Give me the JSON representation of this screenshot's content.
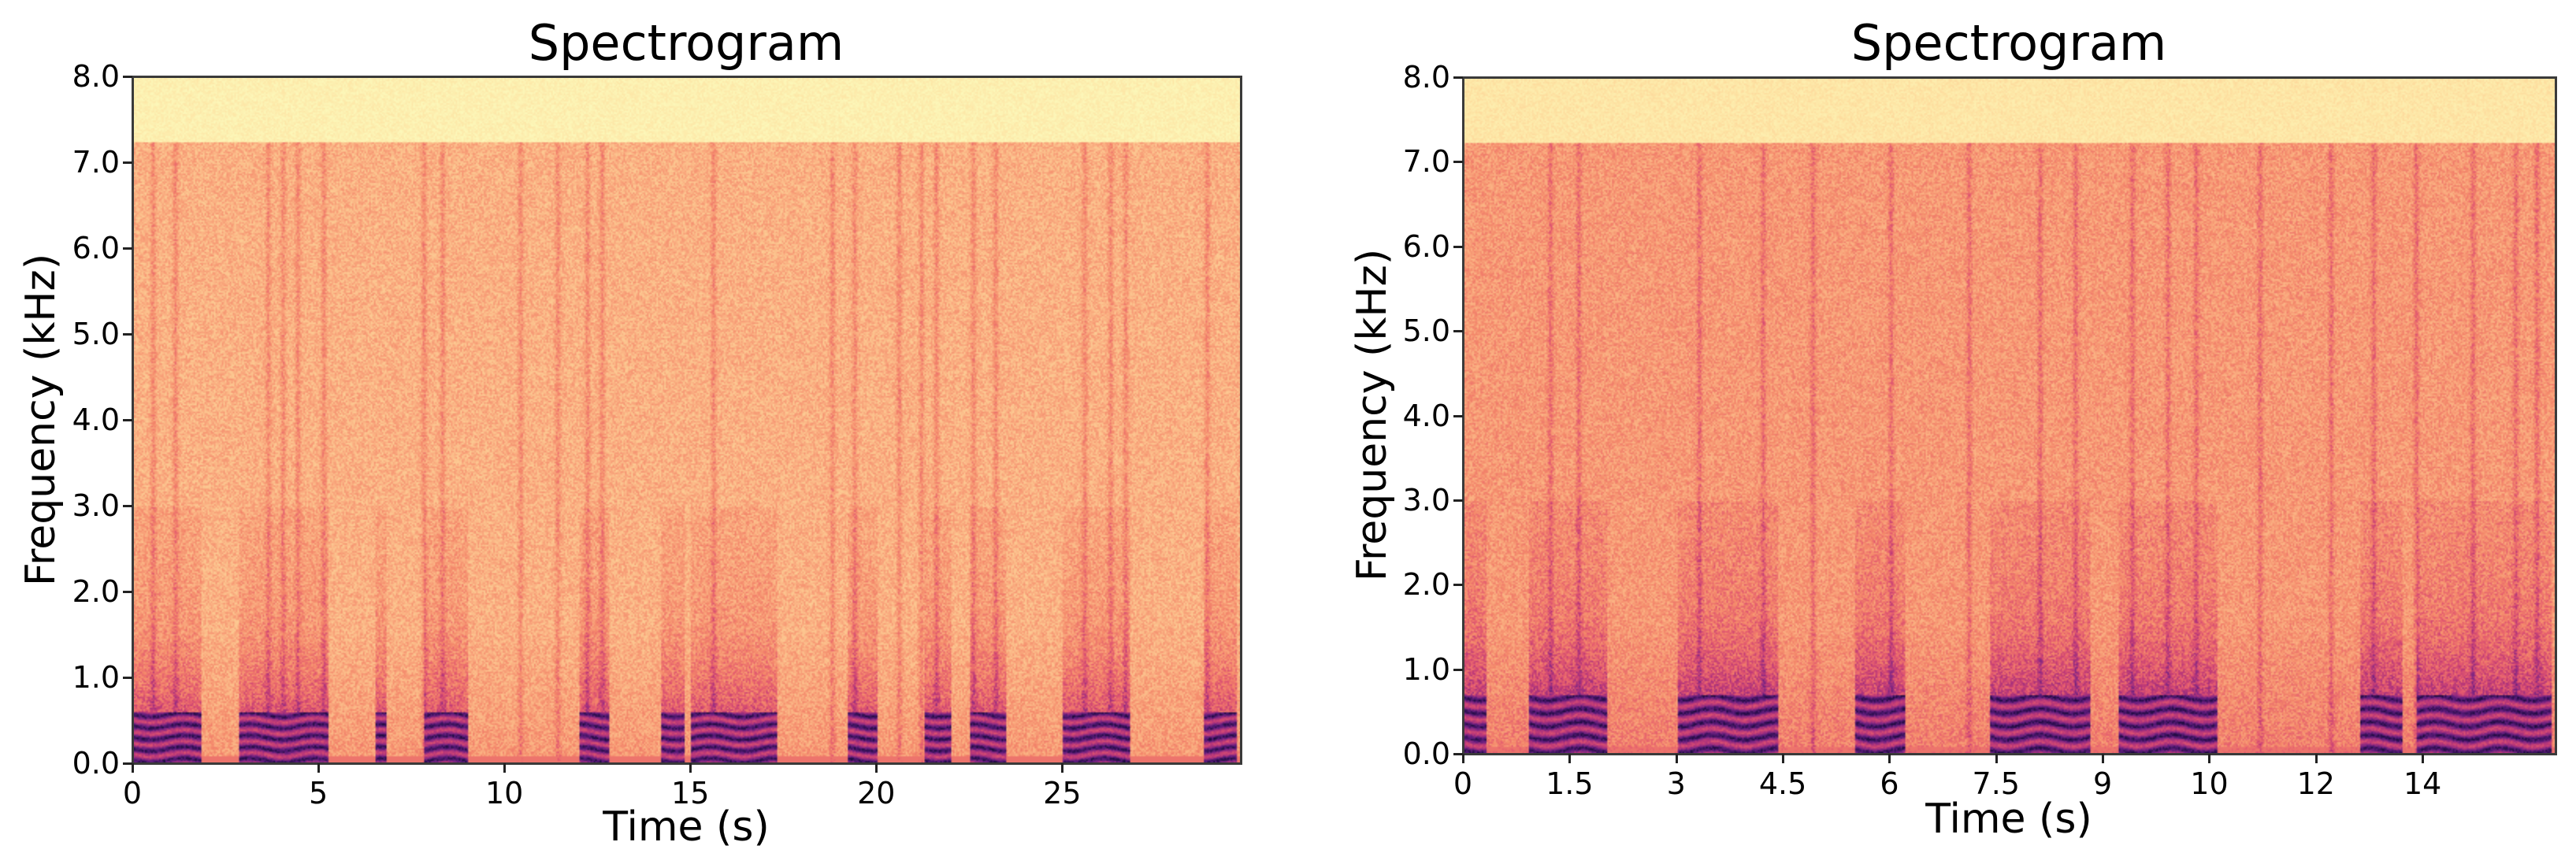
{
  "chart_data": [
    {
      "type": "heatmap",
      "title": "Spectrogram",
      "xlabel": "Time (s)",
      "ylabel": "Frequency (kHz)",
      "xlim": [
        0,
        29.8
      ],
      "ylim": [
        0.0,
        8.0
      ],
      "x_ticks": [
        {
          "value": 0,
          "label": "0"
        },
        {
          "value": 5,
          "label": "5"
        },
        {
          "value": 10,
          "label": "10"
        },
        {
          "value": 15,
          "label": "15"
        },
        {
          "value": 20,
          "label": "20"
        },
        {
          "value": 25,
          "label": "25"
        }
      ],
      "y_ticks": [
        "0.0",
        "1.0",
        "2.0",
        "3.0",
        "4.0",
        "5.0",
        "6.0",
        "7.0",
        "8.0"
      ],
      "grid": false,
      "colormap": "magma_r",
      "colors": {
        "high_band": "#fcf6b8",
        "background": "#f9b889",
        "mid": "#ef7f63",
        "low_energy": "#e0627a",
        "speech": "#6b2a8c",
        "speech_peak": "#2a0b4d"
      },
      "spectral_cutoff_khz": 7.25,
      "speech_band_top_khz": 0.6,
      "speech_segments_s": [
        [
          0.0,
          1.8
        ],
        [
          2.8,
          5.2
        ],
        [
          6.5,
          6.8
        ],
        [
          7.8,
          9.0
        ],
        [
          12.0,
          12.8
        ],
        [
          14.2,
          14.8
        ],
        [
          15.0,
          17.3
        ],
        [
          19.2,
          20.0
        ],
        [
          21.3,
          22.0
        ],
        [
          22.5,
          23.5
        ],
        [
          25.0,
          26.8
        ],
        [
          28.8,
          29.7
        ]
      ],
      "vertical_streaks_s": [
        0.5,
        1.1,
        3.6,
        4.0,
        4.4,
        5.1,
        7.8,
        8.3,
        10.4,
        11.4,
        12.2,
        12.6,
        15.6,
        18.8,
        19.4,
        20.6,
        21.2,
        21.6,
        22.6,
        23.2,
        25.6,
        26.3,
        26.7,
        28.9
      ]
    },
    {
      "type": "heatmap",
      "title": "Spectrogram",
      "xlabel": "Time (s)",
      "ylabel": "Frequency (kHz)",
      "xlim": [
        0,
        15.36
      ],
      "ylim": [
        0.0,
        8.0
      ],
      "x_ticks": [
        {
          "value": 0,
          "label": "0"
        },
        {
          "value": 1.5,
          "label": "1.5"
        },
        {
          "value": 3,
          "label": "3"
        },
        {
          "value": 4.5,
          "label": "4.5"
        },
        {
          "value": 6,
          "label": "6"
        },
        {
          "value": 7.5,
          "label": "7.5"
        },
        {
          "value": 9,
          "label": "9"
        },
        {
          "value": 10.5,
          "label": "10"
        },
        {
          "value": 12,
          "label": "12"
        },
        {
          "value": 13.5,
          "label": "14"
        }
      ],
      "y_ticks": [
        "0.0",
        "1.0",
        "2.0",
        "3.0",
        "4.0",
        "5.0",
        "6.0",
        "7.0",
        "8.0"
      ],
      "grid": false,
      "colormap": "magma_r",
      "colors": {
        "high_band": "#fbe9a8",
        "background": "#f4956f",
        "mid": "#ec7a62",
        "low_energy": "#dc5f78",
        "speech": "#64288a",
        "speech_peak": "#25094a"
      },
      "spectral_cutoff_khz": 7.25,
      "speech_band_top_khz": 0.7,
      "speech_segments_s": [
        [
          0.0,
          0.3
        ],
        [
          0.9,
          2.0
        ],
        [
          3.0,
          4.4
        ],
        [
          5.5,
          6.2
        ],
        [
          7.4,
          8.8
        ],
        [
          9.2,
          10.6
        ],
        [
          12.6,
          13.2
        ],
        [
          13.4,
          15.3
        ]
      ],
      "vertical_streaks_s": [
        1.2,
        1.6,
        3.3,
        4.2,
        4.9,
        6.0,
        7.1,
        8.1,
        8.6,
        9.4,
        9.9,
        10.3,
        11.2,
        12.2,
        12.8,
        13.4,
        14.2,
        14.8,
        15.1
      ]
    }
  ]
}
